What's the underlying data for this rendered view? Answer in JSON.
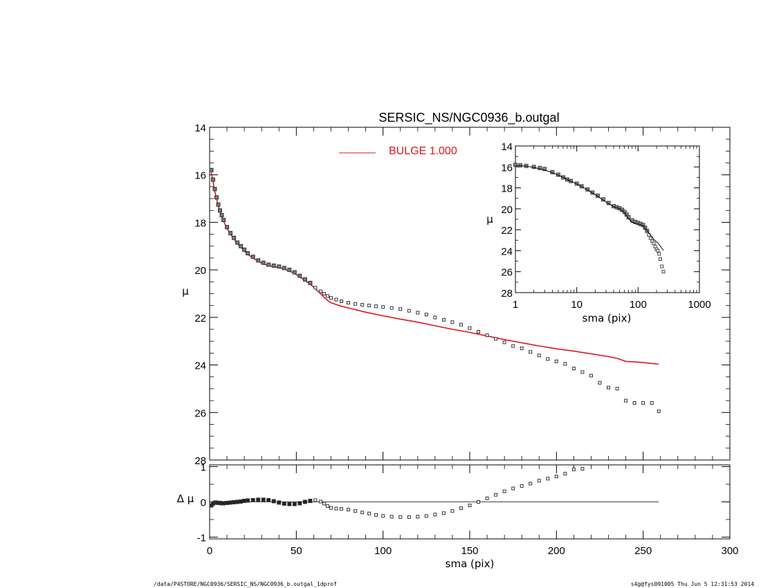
{
  "chart_data": [
    {
      "id": "main",
      "type": "scatter",
      "title": "SERSIC_NS/NGC0936_b.outgal",
      "xlabel": "",
      "ylabel": "μ",
      "xlim": [
        0,
        300
      ],
      "ylim": [
        28,
        14
      ],
      "xticks": [
        "0",
        "50",
        "100",
        "150",
        "200",
        "250",
        "300"
      ],
      "yticks": [
        "14",
        "16",
        "18",
        "20",
        "22",
        "24",
        "26",
        "28"
      ],
      "legend": {
        "placement": "top",
        "label": "BULGE  1.000",
        "color": "#e0141a"
      },
      "data_profile": {
        "x": [
          1,
          2,
          3,
          4,
          5,
          6,
          7,
          8,
          10,
          12,
          14,
          16,
          18,
          20,
          22,
          25,
          28,
          31,
          34,
          37,
          40,
          43,
          46,
          49,
          52,
          55,
          58,
          61,
          64,
          66,
          68,
          70,
          73,
          76,
          80,
          84,
          88,
          92,
          96,
          100,
          105,
          110,
          115,
          120,
          125,
          130,
          135,
          140,
          145,
          150,
          155,
          160,
          165,
          170,
          175,
          180,
          185,
          190,
          195,
          200,
          205,
          210,
          215,
          220,
          225,
          230,
          235,
          240,
          245,
          250,
          255,
          259
        ],
        "y": [
          15.8,
          16.2,
          16.6,
          16.95,
          17.25,
          17.5,
          17.7,
          17.9,
          18.2,
          18.45,
          18.65,
          18.85,
          19.0,
          19.15,
          19.3,
          19.45,
          19.6,
          19.7,
          19.78,
          19.82,
          19.86,
          19.92,
          20.0,
          20.1,
          20.25,
          20.4,
          20.55,
          20.75,
          20.9,
          21.0,
          21.1,
          21.18,
          21.25,
          21.32,
          21.38,
          21.43,
          21.47,
          21.5,
          21.53,
          21.56,
          21.6,
          21.65,
          21.72,
          21.8,
          21.88,
          22.0,
          22.1,
          22.2,
          22.3,
          22.45,
          22.6,
          22.75,
          22.9,
          23.05,
          23.2,
          23.3,
          23.45,
          23.6,
          23.75,
          23.85,
          23.95,
          24.15,
          24.3,
          24.45,
          24.75,
          24.95,
          25.0,
          25.5,
          25.6,
          25.6,
          25.6,
          25.95
        ]
      },
      "model_bulge": {
        "x": [
          1,
          2,
          3,
          4,
          5,
          6,
          7,
          8,
          10,
          12,
          14,
          16,
          18,
          20,
          22,
          25,
          28,
          31,
          34,
          37,
          40,
          43,
          46,
          49,
          52,
          55,
          58,
          61,
          64,
          66,
          68,
          70,
          73,
          76,
          80,
          90,
          100,
          110,
          120,
          130,
          140,
          150,
          160,
          170,
          180,
          190,
          200,
          210,
          220,
          230,
          235,
          240,
          245,
          250,
          259
        ],
        "y": [
          15.9,
          16.3,
          16.7,
          17.0,
          17.3,
          17.55,
          17.75,
          17.95,
          18.25,
          18.5,
          18.7,
          18.9,
          19.05,
          19.2,
          19.35,
          19.5,
          19.65,
          19.75,
          19.82,
          19.86,
          19.9,
          19.97,
          20.05,
          20.15,
          20.3,
          20.45,
          20.6,
          20.8,
          21.0,
          21.15,
          21.28,
          21.38,
          21.46,
          21.53,
          21.6,
          21.78,
          21.93,
          22.07,
          22.2,
          22.35,
          22.5,
          22.63,
          22.78,
          22.93,
          23.07,
          23.2,
          23.32,
          23.42,
          23.53,
          23.65,
          23.72,
          23.85,
          23.87,
          23.9,
          23.97
        ]
      }
    },
    {
      "id": "residual",
      "type": "scatter",
      "title": "",
      "xlabel": "sma (pix)",
      "ylabel": "Δ μ",
      "xlim": [
        0,
        300
      ],
      "ylim": [
        -1.05,
        1.05
      ],
      "xticks": [
        "0",
        "50",
        "100",
        "150",
        "200",
        "250",
        "300"
      ],
      "yticks": [
        "1",
        "0",
        "-1"
      ],
      "zero_line": {
        "x": [
          0,
          259
        ],
        "y": 0
      },
      "residual": {
        "x": [
          1,
          2,
          3,
          4,
          5,
          6,
          7,
          8,
          10,
          12,
          14,
          16,
          18,
          20,
          22,
          25,
          28,
          31,
          34,
          37,
          40,
          43,
          46,
          49,
          52,
          55,
          58,
          61,
          64,
          66,
          68,
          70,
          73,
          76,
          80,
          84,
          88,
          92,
          96,
          100,
          105,
          110,
          115,
          120,
          125,
          130,
          135,
          140,
          145,
          150,
          155,
          160,
          165,
          170,
          175,
          180,
          185,
          190,
          195,
          200,
          205,
          210,
          215
        ],
        "y": [
          -0.1,
          -0.05,
          -0.02,
          -0.02,
          -0.03,
          -0.03,
          -0.04,
          -0.04,
          -0.03,
          -0.02,
          -0.01,
          0.0,
          0.01,
          0.03,
          0.04,
          0.05,
          0.06,
          0.06,
          0.05,
          0.02,
          -0.02,
          -0.05,
          -0.06,
          -0.06,
          -0.04,
          0.0,
          0.03,
          0.05,
          0.01,
          -0.05,
          -0.12,
          -0.17,
          -0.19,
          -0.2,
          -0.22,
          -0.26,
          -0.3,
          -0.33,
          -0.37,
          -0.4,
          -0.42,
          -0.43,
          -0.43,
          -0.42,
          -0.4,
          -0.36,
          -0.32,
          -0.26,
          -0.18,
          -0.1,
          0.0,
          0.1,
          0.2,
          0.3,
          0.38,
          0.45,
          0.52,
          0.6,
          0.66,
          0.72,
          0.8,
          0.92,
          0.94
        ]
      }
    },
    {
      "id": "inset",
      "type": "scatter",
      "title": "",
      "xlabel": "sma (pix)",
      "ylabel": "μ",
      "xscale": "log",
      "xlim": [
        1,
        1000
      ],
      "ylim": [
        28,
        14
      ],
      "xticks": [
        "1",
        "10",
        "100",
        "1000"
      ],
      "yticks": [
        "14",
        "16",
        "18",
        "20",
        "22",
        "24",
        "26",
        "28"
      ],
      "data_profile": {
        "x": [
          1,
          1.2,
          1.5,
          2,
          2.5,
          3,
          4,
          5,
          6,
          7,
          8,
          10,
          12,
          15,
          18,
          22,
          27,
          33,
          40,
          45,
          50,
          55,
          60,
          65,
          70,
          80,
          90,
          100,
          110,
          120,
          130,
          140,
          150,
          160,
          170,
          180,
          190,
          200,
          210,
          220,
          230,
          245,
          259
        ],
        "y": [
          15.8,
          15.85,
          15.9,
          16.0,
          16.1,
          16.2,
          16.5,
          16.75,
          17.0,
          17.2,
          17.35,
          17.6,
          17.85,
          18.15,
          18.45,
          18.75,
          19.1,
          19.45,
          19.75,
          19.85,
          19.95,
          20.1,
          20.3,
          20.55,
          20.8,
          21.1,
          21.25,
          21.35,
          21.45,
          21.55,
          21.8,
          22.1,
          22.5,
          22.8,
          23.1,
          23.3,
          23.6,
          23.85,
          24.0,
          24.3,
          24.8,
          25.5,
          26.0
        ]
      },
      "model_line": {
        "x": [
          1,
          1.5,
          2,
          3,
          4,
          6,
          8,
          10,
          15,
          20,
          30,
          40,
          50,
          60,
          70,
          80,
          100,
          120,
          150,
          180,
          220,
          259
        ],
        "y": [
          15.85,
          15.92,
          16.05,
          16.3,
          16.55,
          17.0,
          17.38,
          17.62,
          18.2,
          18.65,
          19.35,
          19.8,
          19.98,
          20.35,
          20.95,
          21.3,
          21.45,
          21.6,
          22.3,
          22.9,
          23.4,
          23.97
        ]
      }
    }
  ],
  "footer": {
    "left": "/data/P4STORE/NGC0936/SERSIC_NS/NGC0936_b.outgal_1dprof",
    "right": "s4g@fys091005  Thu Jun  5 12:31:53 2014"
  }
}
